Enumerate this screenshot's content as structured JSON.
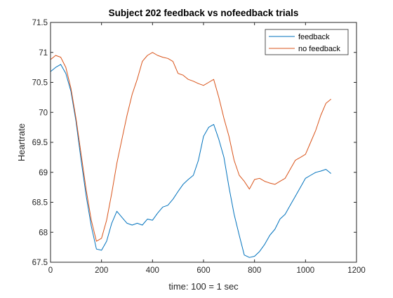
{
  "chart_data": {
    "type": "line",
    "title": "Subject 202 feedback vs nofeedback trials",
    "xlabel": "time: 100 = 1 sec",
    "ylabel": "Heartrate",
    "xlim": [
      0,
      1200
    ],
    "ylim": [
      67.5,
      71.5
    ],
    "xticks": [
      0,
      200,
      400,
      600,
      800,
      1000,
      1200
    ],
    "yticks": [
      67.5,
      68,
      68.5,
      69,
      69.5,
      70,
      70.5,
      71,
      71.5
    ],
    "grid": false,
    "legend": "top-right",
    "series": [
      {
        "name": "feedback",
        "color": "#0072BD",
        "x": [
          0,
          20,
          40,
          60,
          80,
          100,
          120,
          140,
          160,
          180,
          200,
          220,
          240,
          260,
          280,
          300,
          320,
          340,
          360,
          380,
          400,
          420,
          440,
          460,
          480,
          500,
          520,
          540,
          560,
          580,
          600,
          620,
          640,
          660,
          680,
          700,
          720,
          740,
          760,
          780,
          800,
          820,
          840,
          860,
          880,
          900,
          920,
          940,
          960,
          980,
          1000,
          1020,
          1040,
          1060,
          1080,
          1100
        ],
        "values": [
          70.68,
          70.75,
          70.8,
          70.65,
          70.35,
          69.85,
          69.2,
          68.6,
          68.1,
          67.72,
          67.7,
          67.85,
          68.15,
          68.35,
          68.25,
          68.15,
          68.12,
          68.15,
          68.12,
          68.22,
          68.2,
          68.32,
          68.42,
          68.45,
          68.55,
          68.68,
          68.8,
          68.88,
          68.95,
          69.2,
          69.6,
          69.75,
          69.8,
          69.55,
          69.25,
          68.75,
          68.3,
          67.95,
          67.62,
          67.58,
          67.6,
          67.68,
          67.8,
          67.95,
          68.05,
          68.22,
          68.3,
          68.45,
          68.6,
          68.75,
          68.9,
          68.95,
          69.0,
          69.02,
          69.05,
          68.98
        ]
      },
      {
        "name": "no feedback",
        "color": "#D95319",
        "x": [
          0,
          20,
          40,
          60,
          80,
          100,
          120,
          140,
          160,
          180,
          200,
          220,
          240,
          260,
          280,
          300,
          320,
          340,
          360,
          380,
          400,
          420,
          440,
          460,
          480,
          500,
          520,
          540,
          560,
          580,
          600,
          620,
          640,
          660,
          680,
          700,
          720,
          740,
          760,
          780,
          800,
          820,
          840,
          860,
          880,
          900,
          920,
          940,
          960,
          980,
          1000,
          1020,
          1040,
          1060,
          1080,
          1100
        ],
        "values": [
          70.88,
          70.95,
          70.92,
          70.75,
          70.4,
          69.9,
          69.3,
          68.7,
          68.2,
          67.85,
          67.9,
          68.2,
          68.65,
          69.15,
          69.55,
          69.95,
          70.3,
          70.55,
          70.85,
          70.95,
          71.0,
          70.95,
          70.92,
          70.9,
          70.85,
          70.65,
          70.62,
          70.55,
          70.52,
          70.48,
          70.45,
          70.5,
          70.55,
          70.25,
          69.9,
          69.6,
          69.2,
          68.95,
          68.85,
          68.72,
          68.88,
          68.9,
          68.85,
          68.82,
          68.8,
          68.85,
          68.9,
          69.05,
          69.2,
          69.25,
          69.3,
          69.5,
          69.7,
          69.95,
          70.15,
          70.22
        ]
      }
    ]
  }
}
